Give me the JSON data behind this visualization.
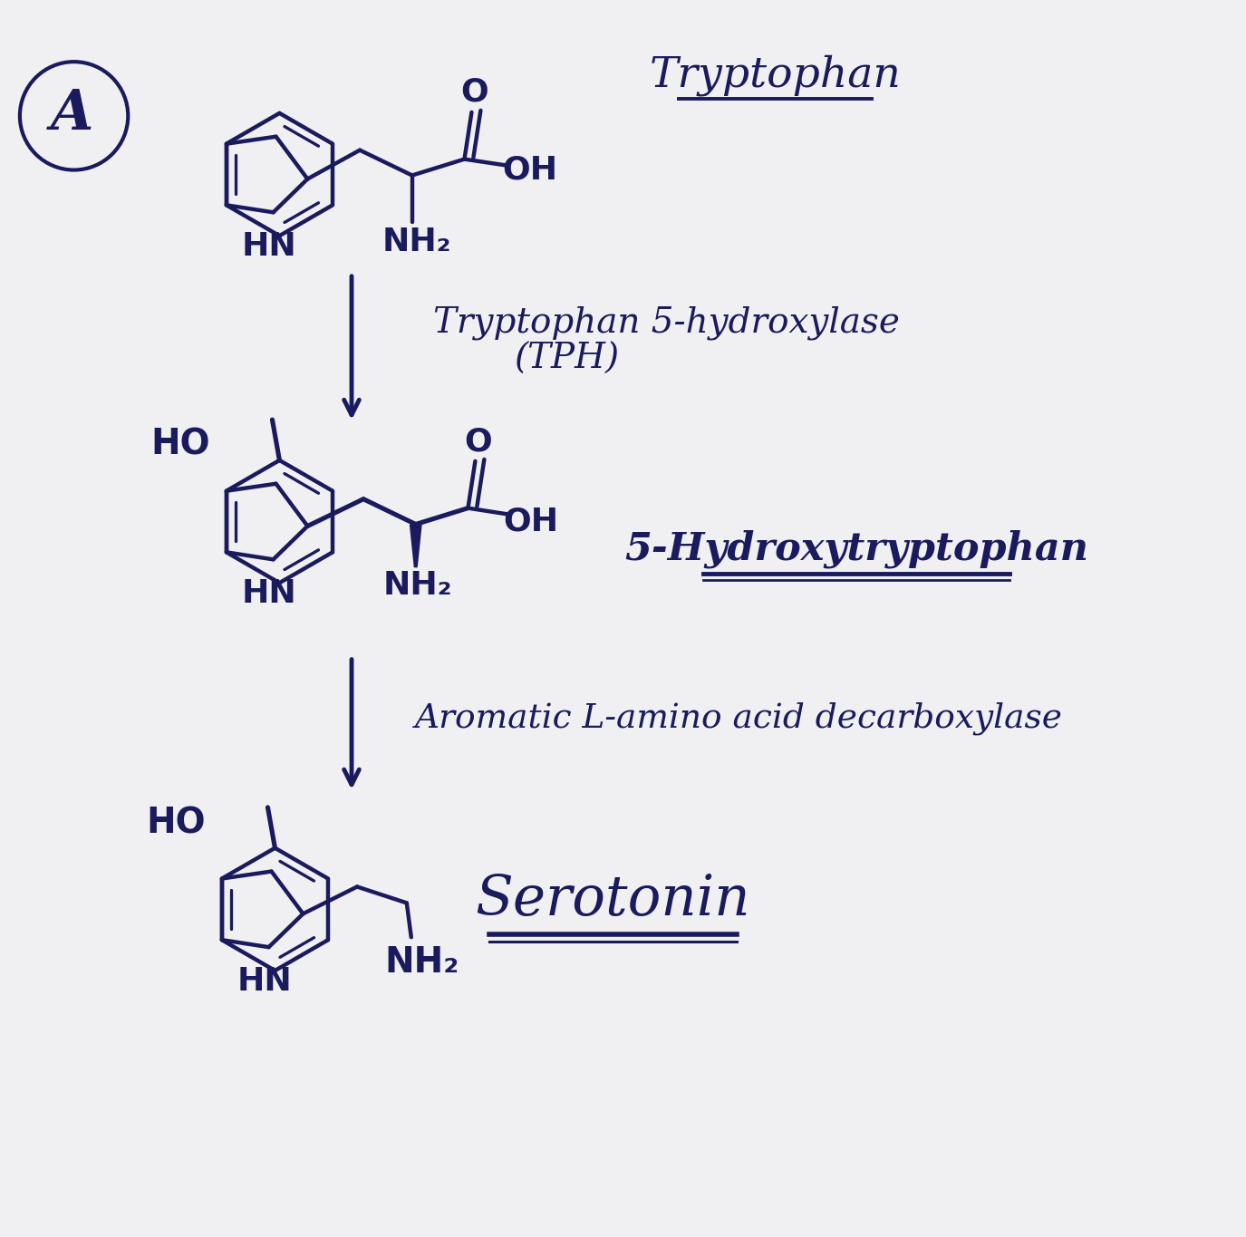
{
  "background_color": "#f0f0f2",
  "ink_color": "#1a1a5e",
  "label_A": "A",
  "label_tryptophan": "Tryptophan",
  "label_enzyme1_line1": "Tryptophan 5-hydroxylase",
  "label_enzyme1_line2": "(TPH)",
  "label_5htp": "5-Hydroxytryptophan",
  "label_enzyme2": "Aromatic L-amino acid decarboxylase",
  "label_serotonin": "Serotonin",
  "label_HO1": "HO",
  "label_HO2": "HO",
  "label_HN1": "HN",
  "label_HN2": "HN",
  "label_HN3": "HN",
  "label_NH2_1": "NH₂",
  "label_NH2_2": "NH₂",
  "label_OH1": "OH",
  "label_OH2": "OH",
  "label_NHa": "NH₂",
  "label_O1": "O",
  "label_O2": "O"
}
